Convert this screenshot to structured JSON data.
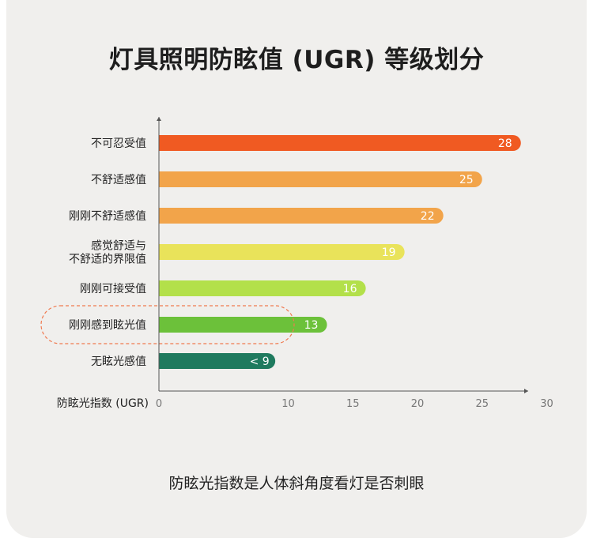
{
  "title": "灯具照明防眩值 (UGR) 等级划分",
  "footer": "防眩光指数是人体斜角度看灯是否刺眼",
  "chart_data": {
    "type": "bar",
    "orientation": "horizontal",
    "xlabel": "防眩光指数 (UGR)",
    "xlim": [
      0,
      30
    ],
    "xticks": [
      0,
      10,
      15,
      20,
      25,
      30
    ],
    "categories": [
      [
        "不可忍受值"
      ],
      [
        "不舒适感值"
      ],
      [
        "刚刚不舒适感值"
      ],
      [
        "感觉舒适与",
        "不舒适的界限值"
      ],
      [
        "刚刚可接受值"
      ],
      [
        "刚刚感到眩光值"
      ],
      [
        "无眩光感值"
      ]
    ],
    "values": [
      28,
      25,
      22,
      19,
      16,
      13,
      9
    ],
    "value_labels": [
      "28",
      "25",
      "22",
      "19",
      "16",
      "13",
      "< 9"
    ],
    "colors": [
      "#f05a22",
      "#f2a44a",
      "#f2a44a",
      "#e9e35a",
      "#b3e04a",
      "#6cc13a",
      "#1f7a5e"
    ],
    "highlight_index": 5,
    "highlight_color": "#f07a50",
    "axis_color": "#555555"
  }
}
